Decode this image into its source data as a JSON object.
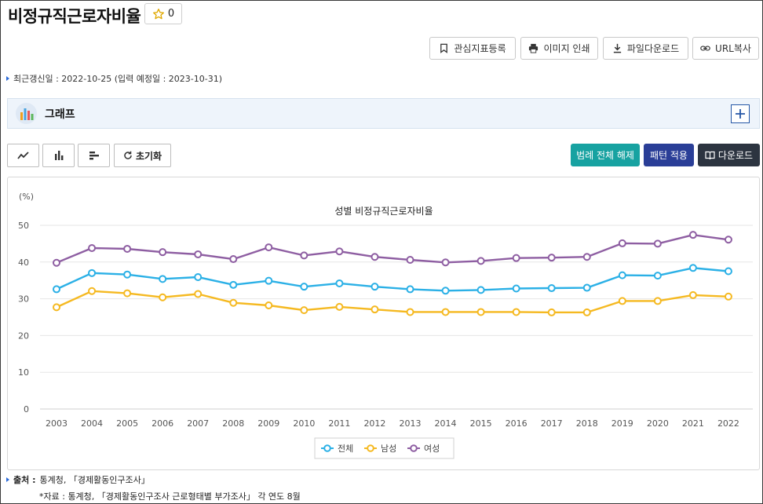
{
  "page": {
    "title": "비정규직근로자비율",
    "favorite_count": "0"
  },
  "toolbar": {
    "bookmark_label": "관심지표등록",
    "print_label": "이미지 인쇄",
    "download_file_label": "파일다운로드",
    "copy_url_label": "URL복사"
  },
  "updated_text": "최근갱신일 : 2022-10-25 (입력 예정일 : 2023-10-31)",
  "graph_section": {
    "title": "그래프"
  },
  "chart_controls": {
    "reset_label": "초기화",
    "legend_off_label": "범례 전체 해제",
    "pattern_label": "패턴 적용",
    "download_label": "다운로드"
  },
  "colors": {
    "total": "#2bb0e6",
    "male": "#f5b921",
    "female": "#8e5ea2",
    "teal_button": "#17a2a1",
    "navy_button": "#2a3e97",
    "dark_button": "#2c3440"
  },
  "chart_data": {
    "type": "line",
    "title": "성별 비정규직근로자비율",
    "ylabel": "(%)",
    "ylim": [
      0,
      50
    ],
    "yticks": [
      0,
      10,
      20,
      30,
      40,
      50
    ],
    "categories": [
      "2003",
      "2004",
      "2005",
      "2006",
      "2007",
      "2008",
      "2009",
      "2010",
      "2011",
      "2012",
      "2013",
      "2014",
      "2015",
      "2016",
      "2017",
      "2018",
      "2019",
      "2020",
      "2021",
      "2022"
    ],
    "series": [
      {
        "name": "전체",
        "key": "total",
        "values": [
          32.6,
          37.0,
          36.6,
          35.4,
          35.9,
          33.8,
          34.9,
          33.3,
          34.2,
          33.3,
          32.6,
          32.2,
          32.4,
          32.8,
          32.9,
          33.0,
          36.4,
          36.3,
          38.4,
          37.5
        ]
      },
      {
        "name": "남성",
        "key": "male",
        "values": [
          27.7,
          32.1,
          31.5,
          30.4,
          31.3,
          28.9,
          28.2,
          26.9,
          27.8,
          27.1,
          26.4,
          26.4,
          26.4,
          26.4,
          26.3,
          26.3,
          29.4,
          29.4,
          31.0,
          30.6
        ]
      },
      {
        "name": "여성",
        "key": "female",
        "values": [
          39.8,
          43.8,
          43.6,
          42.7,
          42.1,
          40.8,
          44.0,
          41.8,
          42.9,
          41.4,
          40.6,
          39.9,
          40.3,
          41.1,
          41.2,
          41.4,
          45.1,
          45.0,
          47.4,
          46.1
        ]
      }
    ],
    "legend_position": "bottom-center",
    "grid": true
  },
  "footer": {
    "source_label": "출처 :",
    "source_text": "통계청, 「경제활동인구조사」",
    "note": "*자료 : 통계청, 「경제활동인구조사 근로형태별 부가조사」 각 연도 8월"
  }
}
